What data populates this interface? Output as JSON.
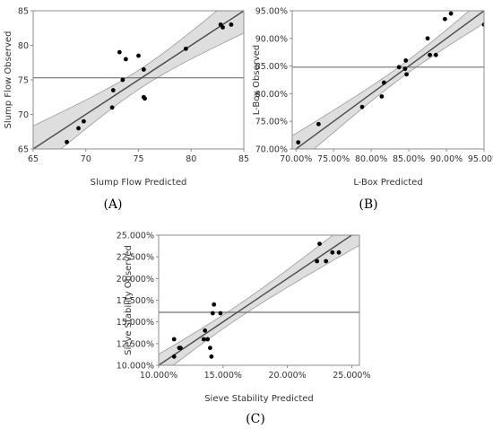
{
  "chart_data": [
    {
      "type": "scatter",
      "panel": "(A)",
      "xlabel": "Slump Flow Predicted",
      "ylabel": "Slump Flow Observed",
      "xlim": [
        65,
        85
      ],
      "ylim": [
        65,
        85
      ],
      "xticks": [
        "65",
        "70",
        "75",
        "80",
        "85"
      ],
      "yticks": [
        "65",
        "70",
        "75",
        "80",
        "85"
      ],
      "mean_line": 75.3,
      "fit": [
        [
          65,
          65
        ],
        [
          85,
          85
        ]
      ],
      "points": [
        [
          68.2,
          66
        ],
        [
          69.3,
          68
        ],
        [
          69.8,
          69
        ],
        [
          72.5,
          71
        ],
        [
          72.6,
          73.5
        ],
        [
          73.2,
          79
        ],
        [
          73.5,
          75
        ],
        [
          73.8,
          78
        ],
        [
          75,
          78.5
        ],
        [
          75.5,
          76.5
        ],
        [
          75.5,
          72.5
        ],
        [
          75.6,
          72.3
        ],
        [
          79.5,
          79.5
        ],
        [
          82.8,
          83
        ],
        [
          83,
          82.6
        ],
        [
          83.8,
          83
        ]
      ]
    },
    {
      "type": "scatter",
      "panel": "(B)",
      "xlabel": "L-Box Predicted",
      "ylabel": "L-Box Observed",
      "xlim": [
        69.5,
        95
      ],
      "ylim": [
        70,
        95
      ],
      "xticks": [
        "70.00%",
        "75.00%",
        "80.00%",
        "85.00%",
        "90.00%",
        "95.00%"
      ],
      "yticks": [
        "70.00%",
        "75.00%",
        "80.00%",
        "85.00%",
        "90.00%",
        "95.00%"
      ],
      "mean_line": 84.8,
      "fit": [
        [
          69.5,
          69.5
        ],
        [
          95,
          95
        ]
      ],
      "points": [
        [
          70.3,
          71.2
        ],
        [
          73,
          74.5
        ],
        [
          78.8,
          77.6
        ],
        [
          81.4,
          79.5
        ],
        [
          81.7,
          82
        ],
        [
          83.7,
          84.8
        ],
        [
          84.5,
          84.5
        ],
        [
          84.6,
          86
        ],
        [
          84.7,
          83.5
        ],
        [
          87.5,
          90
        ],
        [
          87.8,
          87
        ],
        [
          88.6,
          87
        ],
        [
          89.8,
          93.5
        ],
        [
          90.6,
          94.5
        ],
        [
          95,
          92.5
        ]
      ]
    },
    {
      "type": "scatter",
      "panel": "(C)",
      "xlabel": "Sieve Stability Predicted",
      "ylabel": "Sieve Stability Observed",
      "xlim": [
        10,
        25.6
      ],
      "ylim": [
        10,
        25
      ],
      "xticks": [
        "10.000%",
        "15.000%",
        "20.000%",
        "25.000%"
      ],
      "yticks": [
        "10.000%",
        "12.500%",
        "15.000%",
        "17.500%",
        "20.000%",
        "22.500%",
        "25.000%"
      ],
      "mean_line": 16.1,
      "fit": [
        [
          10,
          10
        ],
        [
          25.6,
          25.6
        ]
      ],
      "points": [
        [
          11.2,
          13
        ],
        [
          11.2,
          11
        ],
        [
          11.6,
          12
        ],
        [
          11.7,
          12
        ],
        [
          13.5,
          13
        ],
        [
          13.6,
          14
        ],
        [
          13.8,
          13
        ],
        [
          14,
          12
        ],
        [
          14.1,
          11
        ],
        [
          14.2,
          16
        ],
        [
          14.3,
          17
        ],
        [
          14.8,
          16
        ],
        [
          22.3,
          22
        ],
        [
          22.5,
          24
        ],
        [
          23,
          22
        ],
        [
          23.5,
          23
        ],
        [
          24,
          23
        ]
      ]
    }
  ]
}
